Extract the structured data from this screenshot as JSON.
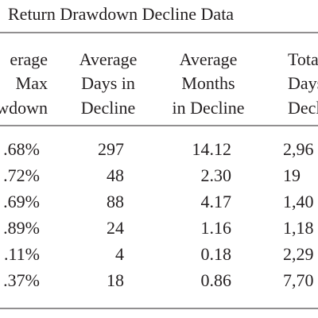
{
  "title": "Return Drawdown Decline Data",
  "table": {
    "header": [
      [
        "erage",
        "Max",
        "rawdown"
      ],
      [
        "Average",
        "Days in",
        "Decline"
      ],
      [
        "Average",
        "Months",
        "in Decline"
      ],
      [
        "Tota",
        "Days",
        "Decli"
      ]
    ],
    "rows": [
      [
        ".68%",
        "297",
        "14.12",
        "2,96"
      ],
      [
        ".72%",
        "48",
        "2.30",
        "19"
      ],
      [
        ".69%",
        "88",
        "4.17",
        "1,40"
      ],
      [
        ".89%",
        "24",
        "1.16",
        "1,18"
      ],
      [
        ".11%",
        "4",
        "0.18",
        "2,29"
      ],
      [
        ".37%",
        "18",
        "0.86",
        "7,70"
      ]
    ]
  }
}
